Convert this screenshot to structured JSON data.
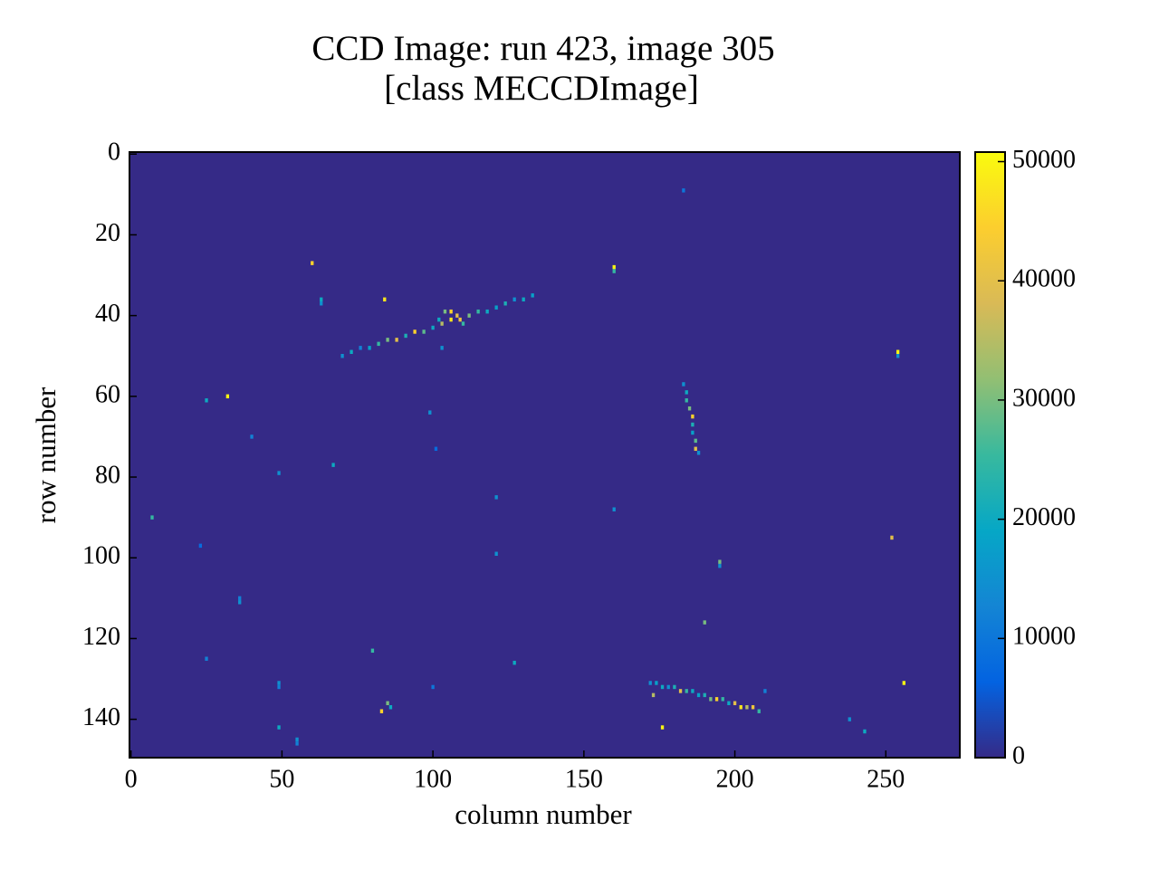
{
  "chart_data": {
    "type": "image",
    "title": "CCD Image: run 423, image 305",
    "subtitle": "[class MECCDImage]",
    "x_label": "column number",
    "y_label": "row number",
    "xlim": [
      -0.5,
      274.5
    ],
    "ylim": [
      149.5,
      -0.5
    ],
    "xticks": [
      0,
      50,
      100,
      150,
      200,
      250
    ],
    "yticks": [
      0,
      20,
      40,
      60,
      80,
      100,
      120,
      140
    ],
    "colormap": [
      "#352a87",
      "#0363e1",
      "#1485d4",
      "#06a7c6",
      "#38b99e",
      "#92bf73",
      "#d9ba56",
      "#fcce2e",
      "#f9fb0e"
    ],
    "clim": [
      0,
      50800
    ],
    "cticks": [
      0,
      10000,
      20000,
      30000,
      40000,
      50000
    ],
    "x": [
      70,
      73,
      76,
      79,
      82,
      85,
      88,
      91,
      94,
      97,
      100,
      103,
      106,
      109,
      112,
      115,
      118,
      121,
      124,
      127,
      130,
      133,
      102,
      104,
      106,
      108,
      110,
      183,
      184,
      184,
      185,
      186,
      186,
      186,
      187,
      187,
      188,
      172,
      174,
      176,
      178,
      180,
      182,
      184,
      186,
      188,
      190,
      192,
      194,
      196,
      198,
      200,
      202,
      204,
      206,
      208,
      60,
      63,
      63,
      84,
      160,
      160,
      183,
      103,
      254,
      254,
      25,
      32,
      99,
      40,
      101,
      49,
      67,
      7,
      121,
      160,
      23,
      121,
      252,
      195,
      195,
      36,
      36,
      190,
      80,
      25,
      127,
      49,
      49,
      100,
      210,
      256,
      173,
      85,
      83,
      86,
      49,
      55,
      55,
      176,
      238,
      243
    ],
    "y": [
      50,
      49,
      48,
      48,
      47,
      46,
      46,
      45,
      44,
      44,
      43,
      42,
      41,
      41,
      40,
      39,
      39,
      38,
      37,
      36,
      36,
      35,
      41,
      39,
      39,
      40,
      42,
      57,
      59,
      61,
      63,
      65,
      67,
      69,
      71,
      73,
      74,
      131,
      131,
      132,
      132,
      132,
      133,
      133,
      133,
      134,
      134,
      135,
      135,
      135,
      136,
      136,
      137,
      137,
      137,
      138,
      27,
      36,
      37,
      36,
      28,
      29,
      9,
      48,
      49,
      50,
      61,
      60,
      64,
      70,
      73,
      79,
      77,
      90,
      85,
      88,
      97,
      99,
      95,
      101,
      102,
      110,
      111,
      116,
      123,
      125,
      126,
      131,
      132,
      132,
      133,
      131,
      134,
      136,
      138,
      137,
      142,
      145,
      146,
      142,
      140,
      143
    ],
    "values": [
      15000,
      20000,
      12000,
      18000,
      25000,
      30000,
      40000,
      22000,
      45000,
      28000,
      20000,
      35000,
      48000,
      42000,
      30000,
      25000,
      20000,
      18000,
      22000,
      15000,
      20000,
      18000,
      20000,
      30000,
      45000,
      40000,
      25000,
      15000,
      20000,
      25000,
      30000,
      45000,
      22000,
      18000,
      28000,
      40000,
      15000,
      15000,
      18000,
      20000,
      15000,
      22000,
      40000,
      25000,
      20000,
      18000,
      22000,
      30000,
      45000,
      25000,
      20000,
      40000,
      48000,
      35000,
      42000,
      25000,
      45000,
      20000,
      15000,
      48000,
      50000,
      25000,
      10000,
      15000,
      50000,
      15000,
      20000,
      50000,
      15000,
      12000,
      8000,
      15000,
      20000,
      25000,
      15000,
      15000,
      8000,
      15000,
      40000,
      30000,
      15000,
      12000,
      15000,
      30000,
      25000,
      12000,
      20000,
      15000,
      12000,
      10000,
      12000,
      50000,
      35000,
      30000,
      45000,
      20000,
      20000,
      15000,
      12000,
      50000,
      15000,
      20000
    ]
  }
}
